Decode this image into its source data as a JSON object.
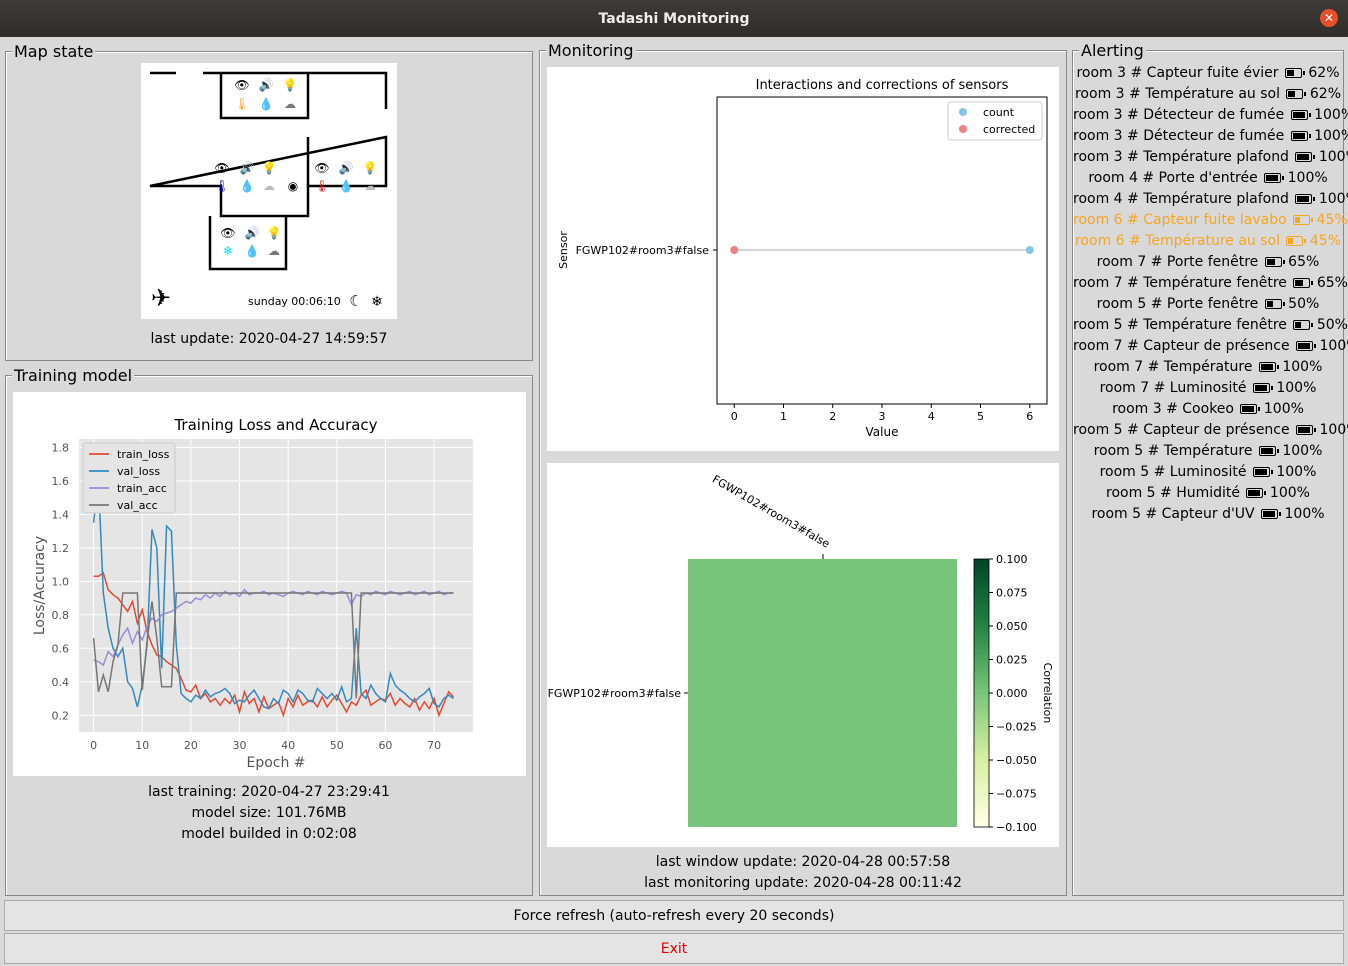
{
  "window": {
    "title": "Tadashi Monitoring"
  },
  "map": {
    "title": "Map state",
    "day": "sunday",
    "time": "00:06:10",
    "last_update": "last update: 2020-04-27 14:59:57"
  },
  "training": {
    "title": "Training model",
    "last_training": "last training: 2020-04-27 23:29:41",
    "model_size": "model size: 101.76MB",
    "build_time": "model builded in 0:02:08"
  },
  "monitoring": {
    "title": "Monitoring",
    "last_window_update": "last window update: 2020-04-28 00:57:58",
    "last_monitoring_update": "last monitoring update: 2020-04-28 00:11:42"
  },
  "alerting": {
    "title": "Alerting",
    "items": [
      {
        "text": "room 3 # Capteur fuite évier",
        "battery": 62,
        "pct": "62%",
        "warn": false
      },
      {
        "text": "room 3 # Température au sol",
        "battery": 62,
        "pct": "62%",
        "warn": false
      },
      {
        "text": "room 3 # Détecteur de fumée",
        "battery": 100,
        "pct": "100%",
        "warn": false
      },
      {
        "text": "room 3 # Détecteur de fumée",
        "battery": 100,
        "pct": "100%",
        "warn": false
      },
      {
        "text": "room 3 # Température plafond",
        "battery": 100,
        "pct": "100%",
        "warn": false
      },
      {
        "text": "room 4 # Porte d'entrée",
        "battery": 100,
        "pct": "100%",
        "warn": false
      },
      {
        "text": "room 4 # Température plafond",
        "battery": 100,
        "pct": "100%",
        "warn": false
      },
      {
        "text": "room 6 # Capteur fuite lavabo",
        "battery": 45,
        "pct": "45%",
        "warn": true
      },
      {
        "text": "room 6 # Température au sol",
        "battery": 45,
        "pct": "45%",
        "warn": true
      },
      {
        "text": "room 7 # Porte fenêtre",
        "battery": 65,
        "pct": "65%",
        "warn": false
      },
      {
        "text": "room 7 # Température fenêtre",
        "battery": 65,
        "pct": "65%",
        "warn": false
      },
      {
        "text": "room 5 # Porte fenêtre",
        "battery": 50,
        "pct": "50%",
        "warn": false
      },
      {
        "text": "room 5 # Température fenêtre",
        "battery": 50,
        "pct": "50%",
        "warn": false
      },
      {
        "text": "room 7 # Capteur de présence",
        "battery": 100,
        "pct": "100%",
        "warn": false
      },
      {
        "text": "room 7 # Température",
        "battery": 100,
        "pct": "100%",
        "warn": false
      },
      {
        "text": "room 7 # Luminosité",
        "battery": 100,
        "pct": "100%",
        "warn": false
      },
      {
        "text": "room 3 # Cookeo",
        "battery": 100,
        "pct": "100%",
        "warn": false
      },
      {
        "text": "room 5 # Capteur de présence",
        "battery": 100,
        "pct": "100%",
        "warn": false
      },
      {
        "text": "room 5 # Température",
        "battery": 100,
        "pct": "100%",
        "warn": false
      },
      {
        "text": "room 5 # Luminosité",
        "battery": 100,
        "pct": "100%",
        "warn": false
      },
      {
        "text": "room 5 # Humidité",
        "battery": 100,
        "pct": "100%",
        "warn": false
      },
      {
        "text": "room 5 # Capteur d'UV",
        "battery": 100,
        "pct": "100%",
        "warn": false
      }
    ]
  },
  "buttons": {
    "refresh": "Force refresh (auto-refresh every 20 seconds)",
    "exit": "Exit"
  },
  "colors": {
    "warn": "#f5a623",
    "train_loss": "#e24a33",
    "val_loss": "#348abd",
    "train_acc": "#988ed5",
    "val_acc": "#777777",
    "count": "#87c5e4",
    "corrected": "#f08080",
    "heat_cell": "#77c57a"
  },
  "chart_data": [
    {
      "type": "line",
      "title": "Training Loss and Accuracy",
      "xlabel": "Epoch #",
      "ylabel": "Loss/Accuracy",
      "xlim": [
        -3,
        78
      ],
      "ylim": [
        0.1,
        1.85
      ],
      "xticks": [
        0,
        10,
        20,
        30,
        40,
        50,
        60,
        70
      ],
      "yticks": [
        0.2,
        0.4,
        0.6,
        0.8,
        1.0,
        1.2,
        1.4,
        1.6,
        1.8
      ],
      "ytick_labels": [
        "0.2",
        "0.4",
        "0.6",
        "0.8",
        "1.0",
        "1.2",
        "1.4",
        "1.6",
        "1.8"
      ],
      "grid": true,
      "legend": "top-left",
      "series": [
        {
          "name": "train_loss",
          "values": [
            1.03,
            1.03,
            1.05,
            0.95,
            0.92,
            0.9,
            0.86,
            0.82,
            0.88,
            0.75,
            0.83,
            0.7,
            0.62,
            0.56,
            0.55,
            0.52,
            0.5,
            0.48,
            0.42,
            0.35,
            0.34,
            0.38,
            0.3,
            0.33,
            0.28,
            0.3,
            0.26,
            0.3,
            0.27,
            0.32,
            0.22,
            0.34,
            0.27,
            0.3,
            0.22,
            0.31,
            0.24,
            0.26,
            0.28,
            0.2,
            0.3,
            0.25,
            0.32,
            0.26,
            0.28,
            0.29,
            0.25,
            0.31,
            0.25,
            0.29,
            0.32,
            0.27,
            0.22,
            0.28,
            0.26,
            0.32,
            0.35,
            0.26,
            0.28,
            0.3,
            0.29,
            0.33,
            0.26,
            0.3,
            0.27,
            0.25,
            0.3,
            0.23,
            0.28,
            0.24,
            0.3,
            0.2,
            0.27,
            0.34,
            0.31
          ]
        },
        {
          "name": "val_loss",
          "values": [
            1.35,
            1.6,
            0.93,
            0.72,
            0.6,
            0.55,
            0.6,
            0.4,
            0.36,
            0.25,
            0.38,
            0.62,
            1.31,
            1.2,
            0.48,
            1.33,
            1.3,
            0.62,
            0.33,
            0.3,
            0.28,
            0.32,
            0.3,
            0.35,
            0.31,
            0.33,
            0.34,
            0.36,
            0.33,
            0.27,
            0.29,
            0.28,
            0.32,
            0.35,
            0.3,
            0.25,
            0.24,
            0.3,
            0.27,
            0.35,
            0.33,
            0.28,
            0.35,
            0.33,
            0.29,
            0.28,
            0.36,
            0.33,
            0.3,
            0.33,
            0.29,
            0.37,
            0.28,
            0.3,
            0.72,
            0.33,
            0.3,
            0.38,
            0.33,
            0.3,
            0.28,
            0.45,
            0.38,
            0.35,
            0.33,
            0.3,
            0.28,
            0.31,
            0.33,
            0.36,
            0.27,
            0.25,
            0.3,
            0.32,
            0.3
          ]
        },
        {
          "name": "train_acc",
          "values": [
            0.53,
            0.52,
            0.5,
            0.58,
            0.55,
            0.62,
            0.68,
            0.72,
            0.63,
            0.7,
            0.65,
            0.73,
            0.78,
            0.76,
            0.8,
            0.81,
            0.82,
            0.84,
            0.86,
            0.88,
            0.87,
            0.9,
            0.89,
            0.92,
            0.9,
            0.93,
            0.91,
            0.94,
            0.92,
            0.93,
            0.91,
            0.95,
            0.92,
            0.93,
            0.93,
            0.94,
            0.92,
            0.93,
            0.92,
            0.91,
            0.93,
            0.94,
            0.93,
            0.92,
            0.94,
            0.93,
            0.92,
            0.94,
            0.93,
            0.92,
            0.93,
            0.94,
            0.93,
            0.86,
            0.92,
            0.91,
            0.93,
            0.92,
            0.94,
            0.93,
            0.92,
            0.94,
            0.93,
            0.92,
            0.93,
            0.94,
            0.92,
            0.93,
            0.94,
            0.92,
            0.93,
            0.94,
            0.92,
            0.93,
            0.93
          ]
        },
        {
          "name": "val_acc",
          "values": [
            0.66,
            0.34,
            0.44,
            0.34,
            0.52,
            0.62,
            0.93,
            0.93,
            0.93,
            0.93,
            0.35,
            0.64,
            0.88,
            0.66,
            0.37,
            0.37,
            0.37,
            0.93,
            0.93,
            0.93,
            0.93,
            0.93,
            0.93,
            0.93,
            0.93,
            0.93,
            0.93,
            0.93,
            0.93,
            0.93,
            0.93,
            0.93,
            0.93,
            0.93,
            0.93,
            0.93,
            0.93,
            0.93,
            0.93,
            0.93,
            0.93,
            0.93,
            0.93,
            0.93,
            0.93,
            0.93,
            0.93,
            0.93,
            0.93,
            0.93,
            0.93,
            0.93,
            0.93,
            0.93,
            0.3,
            0.93,
            0.93,
            0.93,
            0.93,
            0.93,
            0.93,
            0.93,
            0.93,
            0.93,
            0.93,
            0.93,
            0.93,
            0.93,
            0.93,
            0.93,
            0.93,
            0.93,
            0.93,
            0.93,
            0.93
          ]
        }
      ]
    },
    {
      "type": "scatter",
      "title": "Interactions and corrections of sensors",
      "xlabel": "Value",
      "ylabel": "Sensor",
      "xlim": [
        -0.35,
        6.35
      ],
      "xticks": [
        0,
        1,
        2,
        3,
        4,
        5,
        6
      ],
      "categories": [
        "FGWP102#room3#false"
      ],
      "legend": "top-right",
      "series": [
        {
          "name": "count",
          "values": [
            6
          ]
        },
        {
          "name": "corrected",
          "values": [
            0
          ]
        }
      ]
    },
    {
      "type": "heatmap",
      "xlabels": [
        "FGWP102#room3#false"
      ],
      "ylabels": [
        "FGWP102#room3#false"
      ],
      "values": [
        [
          0
        ]
      ],
      "colorbar_label": "Correlation",
      "colorbar_ticks": [
        "0.100",
        "0.075",
        "0.050",
        "0.025",
        "0.000",
        "−0.025",
        "−0.050",
        "−0.075",
        "−0.100"
      ]
    }
  ]
}
